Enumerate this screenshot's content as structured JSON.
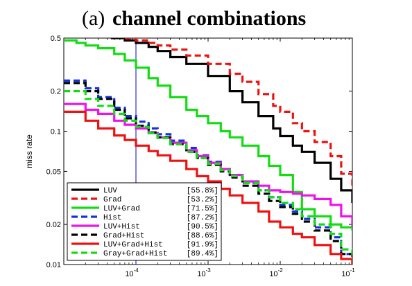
{
  "chart_data": {
    "type": "line",
    "title_label": "(a)",
    "title": "channel combinations",
    "xlabel": "",
    "ylabel": "miss rate",
    "x_scale": "log",
    "y_scale": "log",
    "xlim": [
      1e-05,
      0.1
    ],
    "ylim": [
      0.01,
      0.5
    ],
    "x_ticks": [
      {
        "value": 0.0001,
        "base": "10",
        "exp": "-4"
      },
      {
        "value": 0.001,
        "base": "10",
        "exp": "-3"
      },
      {
        "value": 0.01,
        "base": "10",
        "exp": "-2"
      },
      {
        "value": 0.1,
        "base": "10",
        "exp": "-1"
      }
    ],
    "y_ticks": [
      {
        "value": 0.01,
        "label": "0.01"
      },
      {
        "value": 0.02,
        "label": "0.02"
      },
      {
        "value": 0.05,
        "label": "0.05"
      },
      {
        "value": 0.1,
        "label": "0.1"
      },
      {
        "value": 0.2,
        "label": "0.2"
      },
      {
        "value": 0.5,
        "label": "0.5"
      }
    ],
    "reference_line_x": 0.0001,
    "reference_line_color": "#0000cc",
    "grid": false,
    "legend_position": "bottom-left",
    "series": [
      {
        "name": "LUV",
        "score": "[55.8%]",
        "color": "#000000",
        "dash": "solid",
        "x": [
          4.5e-05,
          7e-05,
          0.0001,
          0.00015,
          0.0002,
          0.0003,
          0.0005,
          0.001,
          0.002,
          0.003,
          0.005,
          0.008,
          0.01,
          0.015,
          0.02,
          0.03,
          0.05,
          0.07,
          0.1
        ],
        "y": [
          0.5,
          0.48,
          0.46,
          0.43,
          0.4,
          0.36,
          0.32,
          0.26,
          0.2,
          0.165,
          0.13,
          0.105,
          0.092,
          0.078,
          0.07,
          0.058,
          0.044,
          0.036,
          0.029
        ]
      },
      {
        "name": "Grad",
        "score": "[53.2%]",
        "color": "#ee1111",
        "dash": "dashed",
        "x": [
          7e-05,
          0.0001,
          0.00015,
          0.0002,
          0.0003,
          0.0005,
          0.001,
          0.002,
          0.003,
          0.005,
          0.008,
          0.01,
          0.015,
          0.02,
          0.03,
          0.05,
          0.07,
          0.1
        ],
        "y": [
          0.5,
          0.48,
          0.46,
          0.44,
          0.41,
          0.37,
          0.32,
          0.27,
          0.235,
          0.19,
          0.155,
          0.14,
          0.115,
          0.1,
          0.083,
          0.065,
          0.048,
          0.037
        ]
      },
      {
        "name": "LUV+Grad",
        "score": "[71.5%]",
        "color": "#11dd11",
        "dash": "solid",
        "x": [
          1e-05,
          1.5e-05,
          2e-05,
          3e-05,
          5e-05,
          7e-05,
          0.0001,
          0.00015,
          0.0002,
          0.0003,
          0.0005,
          0.0007,
          0.001,
          0.0015,
          0.002,
          0.003,
          0.005,
          0.007,
          0.01,
          0.015,
          0.02,
          0.03,
          0.05,
          0.07,
          0.1
        ],
        "y": [
          0.48,
          0.46,
          0.44,
          0.42,
          0.38,
          0.34,
          0.3,
          0.25,
          0.22,
          0.18,
          0.145,
          0.13,
          0.115,
          0.1,
          0.09,
          0.078,
          0.065,
          0.055,
          0.047,
          0.035,
          0.026,
          0.023,
          0.02,
          0.019,
          0.018
        ]
      },
      {
        "name": "Hist",
        "score": "[87.2%]",
        "color": "#1133dd",
        "dash": "dashed",
        "x": [
          1e-05,
          2e-05,
          3e-05,
          5e-05,
          7e-05,
          0.0001,
          0.00015,
          0.0002,
          0.0003,
          0.0005,
          0.0007,
          0.001,
          0.0015,
          0.002,
          0.003,
          0.005,
          0.007,
          0.01,
          0.015,
          0.02,
          0.03,
          0.05,
          0.07,
          0.1
        ],
        "y": [
          0.24,
          0.21,
          0.18,
          0.15,
          0.13,
          0.118,
          0.105,
          0.095,
          0.085,
          0.075,
          0.066,
          0.059,
          0.052,
          0.047,
          0.041,
          0.036,
          0.032,
          0.028,
          0.025,
          0.022,
          0.019,
          0.016,
          0.012,
          0.011
        ]
      },
      {
        "name": "LUV+Hist",
        "score": "[90.5%]",
        "color": "#ee11ee",
        "dash": "solid",
        "x": [
          1e-05,
          2e-05,
          3e-05,
          5e-05,
          7e-05,
          0.0001,
          0.00015,
          0.0002,
          0.0003,
          0.0005,
          0.0007,
          0.001,
          0.0015,
          0.002,
          0.003,
          0.005,
          0.007,
          0.01,
          0.015,
          0.02,
          0.03,
          0.05,
          0.07,
          0.1
        ],
        "y": [
          0.16,
          0.145,
          0.135,
          0.12,
          0.112,
          0.105,
          0.097,
          0.09,
          0.082,
          0.072,
          0.065,
          0.058,
          0.052,
          0.047,
          0.042,
          0.039,
          0.036,
          0.035,
          0.034,
          0.033,
          0.031,
          0.028,
          0.023,
          0.019
        ]
      },
      {
        "name": "Grad+Hist",
        "score": "[88.6%]",
        "color": "#000000",
        "dash": "dashed",
        "x": [
          1e-05,
          2e-05,
          3e-05,
          5e-05,
          7e-05,
          0.0001,
          0.00015,
          0.0002,
          0.0003,
          0.0005,
          0.0007,
          0.001,
          0.0015,
          0.002,
          0.003,
          0.005,
          0.007,
          0.01,
          0.015,
          0.02,
          0.03,
          0.05,
          0.07,
          0.1
        ],
        "y": [
          0.23,
          0.2,
          0.175,
          0.145,
          0.125,
          0.11,
          0.098,
          0.09,
          0.08,
          0.07,
          0.063,
          0.056,
          0.05,
          0.045,
          0.039,
          0.034,
          0.03,
          0.027,
          0.024,
          0.021,
          0.018,
          0.015,
          0.012,
          0.01
        ]
      },
      {
        "name": "LUV+Grad+Hist",
        "score": "[91.9%]",
        "color": "#ee1111",
        "dash": "solid",
        "x": [
          1e-05,
          2e-05,
          3e-05,
          5e-05,
          7e-05,
          0.0001,
          0.00015,
          0.0002,
          0.0003,
          0.0005,
          0.0007,
          0.001,
          0.0015,
          0.002,
          0.003,
          0.005,
          0.007,
          0.01,
          0.015,
          0.02,
          0.03,
          0.05,
          0.07,
          0.1
        ],
        "y": [
          0.14,
          0.12,
          0.105,
          0.093,
          0.086,
          0.078,
          0.071,
          0.066,
          0.06,
          0.052,
          0.046,
          0.042,
          0.037,
          0.033,
          0.029,
          0.025,
          0.021,
          0.019,
          0.017,
          0.016,
          0.014,
          0.012,
          0.011,
          0.01
        ]
      },
      {
        "name": "Gray+Grad+Hist",
        "score": "[89.4%]",
        "color": "#11dd11",
        "dash": "dashed",
        "x": [
          1e-05,
          2e-05,
          3e-05,
          5e-05,
          7e-05,
          0.0001,
          0.00015,
          0.0002,
          0.0003,
          0.0005,
          0.0007,
          0.001,
          0.0015,
          0.002,
          0.003,
          0.005,
          0.007,
          0.01,
          0.015,
          0.02,
          0.03,
          0.05,
          0.07,
          0.1
        ],
        "y": [
          0.2,
          0.175,
          0.155,
          0.135,
          0.12,
          0.108,
          0.097,
          0.089,
          0.08,
          0.07,
          0.063,
          0.057,
          0.051,
          0.046,
          0.041,
          0.036,
          0.032,
          0.029,
          0.026,
          0.023,
          0.02,
          0.017,
          0.013,
          0.011
        ]
      }
    ]
  }
}
